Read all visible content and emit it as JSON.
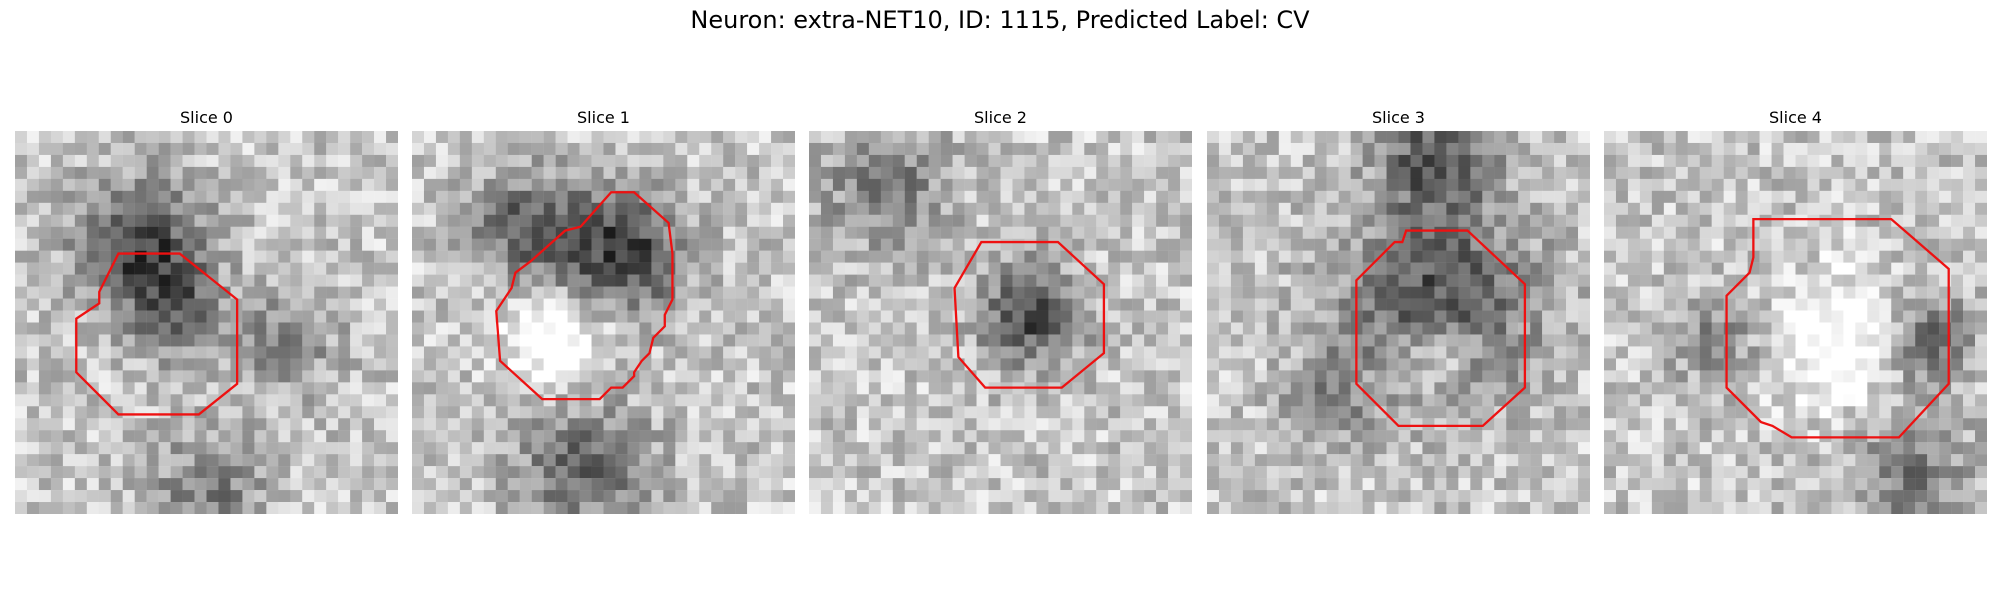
{
  "figure": {
    "title": "Neuron: extra-NET10, ID: 1115, Predicted Label: CV"
  },
  "panels": [
    {
      "label": "Slice 0",
      "contour_color": "#ee1111",
      "contour": [
        [
          0.27,
          0.32
        ],
        [
          0.43,
          0.32
        ],
        [
          0.58,
          0.44
        ],
        [
          0.58,
          0.66
        ],
        [
          0.48,
          0.74
        ],
        [
          0.27,
          0.74
        ],
        [
          0.16,
          0.63
        ],
        [
          0.16,
          0.49
        ],
        [
          0.22,
          0.45
        ],
        [
          0.22,
          0.42
        ]
      ]
    },
    {
      "label": "Slice 1",
      "contour_color": "#ee1111",
      "contour": [
        [
          0.52,
          0.16
        ],
        [
          0.58,
          0.16
        ],
        [
          0.67,
          0.24
        ],
        [
          0.68,
          0.32
        ],
        [
          0.68,
          0.44
        ],
        [
          0.66,
          0.48
        ],
        [
          0.66,
          0.51
        ],
        [
          0.63,
          0.54
        ],
        [
          0.62,
          0.58
        ],
        [
          0.6,
          0.6
        ],
        [
          0.58,
          0.63
        ],
        [
          0.58,
          0.64
        ],
        [
          0.57,
          0.65
        ],
        [
          0.55,
          0.67
        ],
        [
          0.52,
          0.67
        ],
        [
          0.49,
          0.7
        ],
        [
          0.34,
          0.7
        ],
        [
          0.23,
          0.6
        ],
        [
          0.22,
          0.47
        ],
        [
          0.26,
          0.41
        ],
        [
          0.27,
          0.37
        ],
        [
          0.31,
          0.34
        ],
        [
          0.4,
          0.26
        ],
        [
          0.44,
          0.25
        ]
      ]
    },
    {
      "label": "Slice 2",
      "contour_color": "#ee1111",
      "contour": [
        [
          0.45,
          0.29
        ],
        [
          0.65,
          0.29
        ],
        [
          0.77,
          0.4
        ],
        [
          0.77,
          0.58
        ],
        [
          0.66,
          0.67
        ],
        [
          0.46,
          0.67
        ],
        [
          0.39,
          0.59
        ],
        [
          0.38,
          0.41
        ]
      ]
    },
    {
      "label": "Slice 3",
      "contour_color": "#ee1111",
      "contour": [
        [
          0.52,
          0.26
        ],
        [
          0.68,
          0.26
        ],
        [
          0.83,
          0.4
        ],
        [
          0.83,
          0.67
        ],
        [
          0.72,
          0.77
        ],
        [
          0.5,
          0.77
        ],
        [
          0.39,
          0.66
        ],
        [
          0.39,
          0.39
        ],
        [
          0.49,
          0.29
        ],
        [
          0.51,
          0.29
        ]
      ]
    },
    {
      "label": "Slice 4",
      "contour_color": "#ee1111",
      "contour": [
        [
          0.39,
          0.23
        ],
        [
          0.75,
          0.23
        ],
        [
          0.9,
          0.36
        ],
        [
          0.9,
          0.66
        ],
        [
          0.77,
          0.8
        ],
        [
          0.49,
          0.8
        ],
        [
          0.44,
          0.77
        ],
        [
          0.41,
          0.76
        ],
        [
          0.32,
          0.67
        ],
        [
          0.32,
          0.43
        ],
        [
          0.35,
          0.4
        ],
        [
          0.38,
          0.37
        ],
        [
          0.39,
          0.33
        ]
      ]
    }
  ]
}
